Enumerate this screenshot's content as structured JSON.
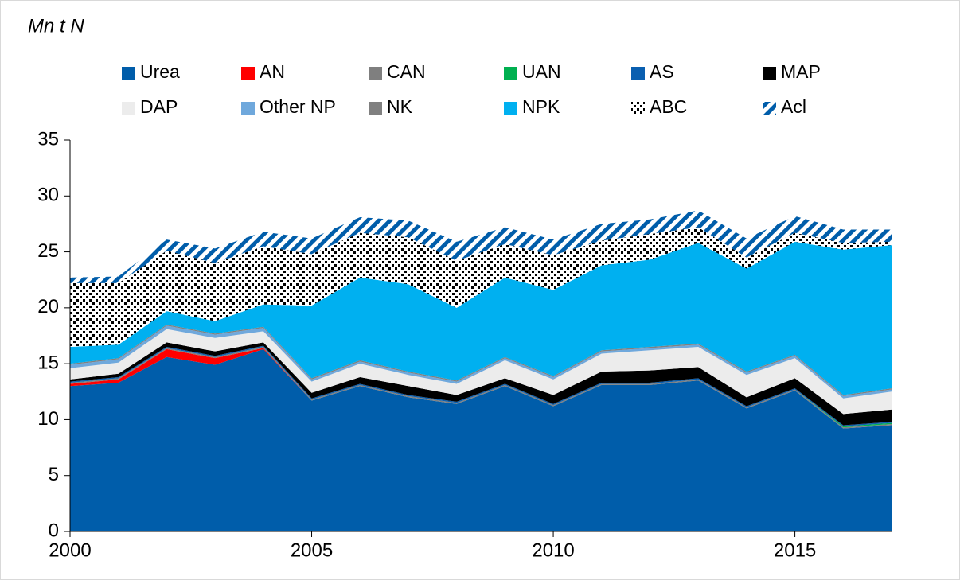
{
  "chart_data": {
    "type": "area",
    "stacked": true,
    "y_label": "Mn t N",
    "x": [
      2000,
      2001,
      2002,
      2003,
      2004,
      2005,
      2006,
      2007,
      2008,
      2009,
      2010,
      2011,
      2012,
      2013,
      2014,
      2015,
      2016,
      2017
    ],
    "xlim": [
      2000,
      2017
    ],
    "xticks": [
      2000,
      2005,
      2010,
      2015
    ],
    "ylim": [
      0,
      35
    ],
    "yticks": [
      0,
      5,
      10,
      15,
      20,
      25,
      30,
      35
    ],
    "series": [
      {
        "name": "Urea",
        "color": "#005daa",
        "values": [
          13.0,
          13.3,
          15.6,
          14.9,
          16.3,
          11.7,
          13.0,
          12.0,
          11.4,
          13.0,
          11.2,
          13.1,
          13.1,
          13.5,
          11.0,
          12.6,
          9.2,
          9.5
        ]
      },
      {
        "name": "AN",
        "color": "#ff0000",
        "values": [
          0.2,
          0.3,
          0.7,
          0.6,
          0.1,
          0,
          0,
          0,
          0,
          0,
          0,
          0,
          0,
          0,
          0,
          0,
          0,
          0
        ]
      },
      {
        "name": "CAN",
        "color": "#7f7f7f",
        "values": [
          0.1,
          0.1,
          0.1,
          0.1,
          0.1,
          0.1,
          0.1,
          0.1,
          0.1,
          0.1,
          0.1,
          0.1,
          0.1,
          0.1,
          0.1,
          0.1,
          0.1,
          0.1
        ]
      },
      {
        "name": "UAN",
        "color": "#00b050",
        "values": [
          0,
          0,
          0,
          0,
          0,
          0,
          0,
          0,
          0,
          0,
          0,
          0,
          0,
          0,
          0,
          0,
          0.1,
          0.1
        ]
      },
      {
        "name": "AS",
        "color": "#0a5fb0",
        "values": [
          0.1,
          0.1,
          0.1,
          0.1,
          0.1,
          0.1,
          0.1,
          0.1,
          0.1,
          0.1,
          0.1,
          0.1,
          0.1,
          0.1,
          0.1,
          0.1,
          0.1,
          0.1
        ]
      },
      {
        "name": "MAP",
        "color": "#000000",
        "values": [
          0.2,
          0.3,
          0.4,
          0.4,
          0.3,
          0.5,
          0.6,
          0.8,
          0.6,
          0.5,
          0.8,
          1.0,
          1.1,
          1.0,
          0.8,
          0.9,
          1.0,
          1.1
        ]
      },
      {
        "name": "DAP",
        "color": "#ececec",
        "values": [
          1.0,
          1.0,
          1.2,
          1.2,
          1.0,
          1.0,
          1.2,
          1.0,
          1.0,
          1.6,
          1.4,
          1.6,
          1.8,
          1.8,
          2.0,
          1.8,
          1.4,
          1.6
        ]
      },
      {
        "name": "Other NP",
        "color": "#6fa8dc",
        "values": [
          0.3,
          0.3,
          0.3,
          0.3,
          0.3,
          0.2,
          0.2,
          0.2,
          0.2,
          0.2,
          0.2,
          0.2,
          0.2,
          0.2,
          0.2,
          0.2,
          0.2,
          0.2
        ]
      },
      {
        "name": "NK",
        "color": "#808080",
        "values": [
          0.1,
          0.1,
          0.1,
          0.1,
          0.1,
          0.1,
          0.1,
          0.1,
          0.1,
          0.1,
          0.1,
          0.1,
          0.1,
          0.1,
          0.1,
          0.1,
          0.1,
          0.1
        ]
      },
      {
        "name": "NPK",
        "color": "#00b0f0",
        "values": [
          1.5,
          1.2,
          1.2,
          1.1,
          2.0,
          6.5,
          7.4,
          7.8,
          6.5,
          7.1,
          7.7,
          7.6,
          7.8,
          9.0,
          9.2,
          10.1,
          13.0,
          12.8
        ]
      },
      {
        "name": "ABC",
        "color": "#000000",
        "pattern": "dots",
        "values": [
          5.7,
          5.5,
          5.4,
          5.2,
          5.2,
          4.6,
          4.0,
          4.2,
          4.2,
          3.0,
          3.1,
          2.2,
          2.3,
          1.4,
          1.0,
          0.8,
          0.6,
          0.3
        ]
      },
      {
        "name": "Acl",
        "color": "#005daa",
        "pattern": "stripes",
        "values": [
          0.5,
          0.6,
          1.0,
          1.3,
          1.3,
          1.4,
          1.4,
          1.5,
          1.7,
          1.5,
          1.4,
          1.5,
          1.3,
          1.5,
          1.7,
          1.5,
          1.2,
          1.1
        ]
      }
    ]
  }
}
